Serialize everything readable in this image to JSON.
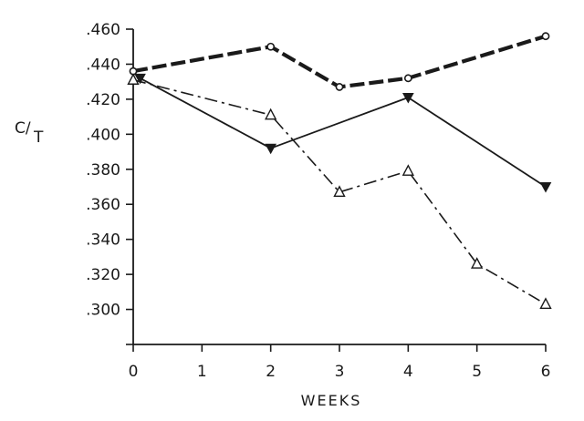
{
  "chart_data": {
    "type": "line",
    "xlabel": "WEEKS",
    "ylabel_parts": [
      "C/",
      "T"
    ],
    "xlim": [
      0,
      6
    ],
    "ylim": [
      0.28,
      0.46
    ],
    "x_ticks": [
      {
        "value": 0,
        "label": "0"
      },
      {
        "value": 1,
        "label": "1"
      },
      {
        "value": 2,
        "label": "2"
      },
      {
        "value": 3,
        "label": "3"
      },
      {
        "value": 4,
        "label": "4"
      },
      {
        "value": 5,
        "label": "5"
      },
      {
        "value": 6,
        "label": "6"
      }
    ],
    "y_ticks": [
      {
        "value": 0.3,
        "label": ".300"
      },
      {
        "value": 0.32,
        "label": ".320"
      },
      {
        "value": 0.34,
        "label": ".340"
      },
      {
        "value": 0.36,
        "label": ".360"
      },
      {
        "value": 0.38,
        "label": ".380"
      },
      {
        "value": 0.4,
        "label": ".400"
      },
      {
        "value": 0.42,
        "label": ".420"
      },
      {
        "value": 0.44,
        "label": ".440"
      },
      {
        "value": 0.46,
        "label": ".460"
      }
    ],
    "grid": false,
    "series": [
      {
        "marker": "open-circle",
        "line_style": "heavy-dashed",
        "color": "#1a1a1a",
        "x": [
          0,
          2,
          3,
          4,
          6
        ],
        "y": [
          0.436,
          0.45,
          0.427,
          0.432,
          0.456
        ]
      },
      {
        "marker": "filled-triangle-down",
        "line_style": "solid",
        "color": "#1a1a1a",
        "x": [
          0.1,
          2,
          4,
          6
        ],
        "y": [
          0.432,
          0.392,
          0.421,
          0.37
        ]
      },
      {
        "marker": "open-triangle-up",
        "line_style": "dash-dot",
        "color": "#1a1a1a",
        "x": [
          0,
          2,
          3,
          4,
          5,
          6
        ],
        "y": [
          0.431,
          0.411,
          0.367,
          0.379,
          0.326,
          0.303
        ]
      }
    ]
  }
}
